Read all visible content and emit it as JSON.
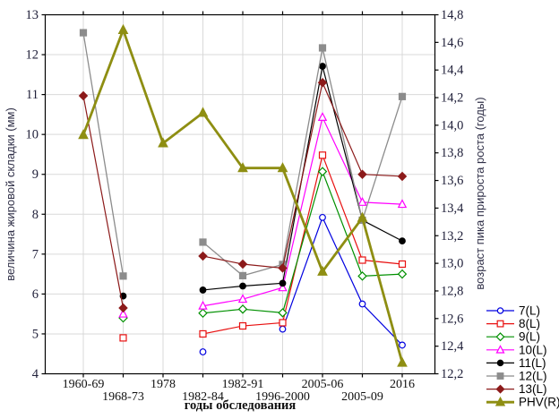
{
  "chart_data": {
    "type": "line",
    "title": "",
    "xlabel": "годы обследования",
    "ylabel_left": "величина жировой складки (мм)",
    "ylabel_right": "возраст пика прироста роста (годы)",
    "categories": [
      "1960-69",
      "1968-73",
      "1978",
      "1982-84",
      "1982-91",
      "1996-2000",
      "2005-06",
      "2005-09",
      "2016"
    ],
    "left_axis": {
      "min": 4,
      "max": 13,
      "step": 1
    },
    "right_axis": {
      "min": 12.2,
      "max": 14.8,
      "step": 0.2,
      "decimal_comma": true
    },
    "grid": true,
    "legend_position": "right-bottom",
    "series": [
      {
        "name": "7(L)",
        "axis": "left",
        "color": "#0000e0",
        "marker": "circle",
        "filled": false,
        "line_width": 1.2,
        "values": [
          null,
          null,
          null,
          4.55,
          null,
          5.12,
          7.92,
          5.75,
          4.72
        ]
      },
      {
        "name": "8(L)",
        "axis": "left",
        "color": "#e81010",
        "marker": "square",
        "filled": false,
        "line_width": 1.2,
        "values": [
          null,
          4.9,
          null,
          5.0,
          5.2,
          5.28,
          9.48,
          6.85,
          6.75
        ]
      },
      {
        "name": "9(L)",
        "axis": "left",
        "color": "#009000",
        "marker": "diamond",
        "filled": false,
        "line_width": 1.2,
        "values": [
          null,
          5.4,
          null,
          5.52,
          5.62,
          5.53,
          9.07,
          6.45,
          6.5
        ]
      },
      {
        "name": "10(L)",
        "axis": "left",
        "color": "#ff00ff",
        "marker": "triangle",
        "filled": false,
        "line_width": 1.2,
        "values": [
          null,
          5.5,
          null,
          5.7,
          5.87,
          6.16,
          10.43,
          8.3,
          8.25
        ]
      },
      {
        "name": "11(L)",
        "axis": "left",
        "color": "#000000",
        "marker": "circle",
        "filled": true,
        "line_width": 1.2,
        "values": [
          null,
          5.95,
          null,
          6.1,
          6.2,
          6.27,
          11.71,
          7.85,
          7.33
        ]
      },
      {
        "name": "12(L)",
        "axis": "left",
        "color": "#8c8c8c",
        "marker": "square",
        "filled": true,
        "line_width": 1.3,
        "values": [
          12.55,
          6.45,
          null,
          7.3,
          6.46,
          6.74,
          12.17,
          7.85,
          10.95
        ]
      },
      {
        "name": "13(L)",
        "axis": "left",
        "color": "#8c1a1a",
        "marker": "diamond",
        "filled": true,
        "line_width": 1.2,
        "values": [
          10.97,
          5.65,
          null,
          6.95,
          6.75,
          6.65,
          11.3,
          9.0,
          8.95
        ]
      },
      {
        "name": "PHV(R)",
        "axis": "right",
        "color": "#8e8e12",
        "marker": "triangle",
        "filled": true,
        "line_width": 2.8,
        "values": [
          13.93,
          14.69,
          13.87,
          14.09,
          13.69,
          13.69,
          12.94,
          13.33,
          12.28
        ]
      }
    ],
    "style": {
      "grid_color": "#d9d9d9",
      "frame_color": "#000000",
      "tick_label_color": "#20203a",
      "x_tick_label_color": "#101010",
      "axis_title_color": "#303048",
      "legend_text_color": "#000000"
    }
  }
}
